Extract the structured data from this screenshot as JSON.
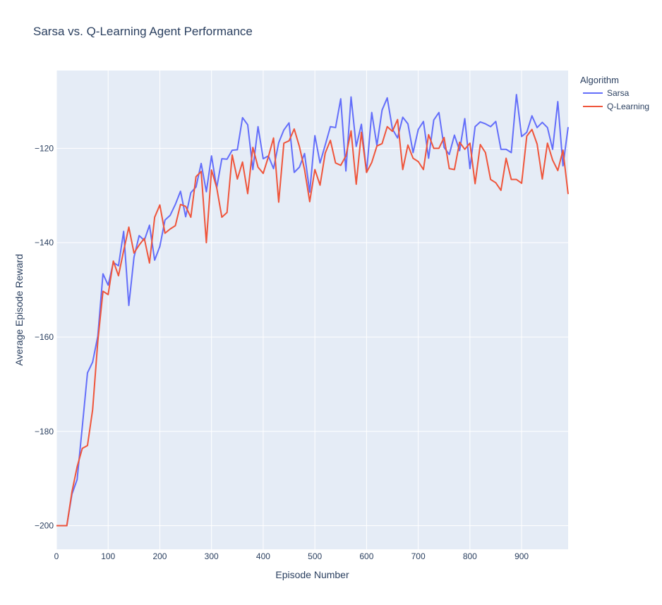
{
  "chart_data": {
    "type": "line",
    "title": "Sarsa vs. Q-Learning Agent Performance",
    "xlabel": "Episode Number",
    "ylabel": "Average Episode Reward",
    "xlim": [
      0,
      990
    ],
    "ylim": [
      -205,
      -103.5
    ],
    "xticks": [
      0,
      100,
      200,
      300,
      400,
      500,
      600,
      700,
      800,
      900
    ],
    "yticks": [
      -200,
      -180,
      -160,
      -140,
      -120
    ],
    "legend": {
      "title": "Algorithm",
      "position": "top-right-outside"
    },
    "grid": true,
    "x": [
      0,
      10,
      20,
      30,
      40,
      50,
      60,
      70,
      80,
      90,
      100,
      110,
      120,
      130,
      140,
      150,
      160,
      170,
      180,
      190,
      200,
      210,
      220,
      230,
      240,
      250,
      260,
      270,
      280,
      290,
      300,
      310,
      320,
      330,
      340,
      350,
      360,
      370,
      380,
      390,
      400,
      410,
      420,
      430,
      440,
      450,
      460,
      470,
      480,
      490,
      500,
      510,
      520,
      530,
      540,
      550,
      560,
      570,
      580,
      590,
      600,
      610,
      620,
      630,
      640,
      650,
      660,
      670,
      680,
      690,
      700,
      710,
      720,
      730,
      740,
      750,
      760,
      770,
      780,
      790,
      800,
      810,
      820,
      830,
      840,
      850,
      860,
      870,
      880,
      890,
      900,
      910,
      920,
      930,
      940,
      950,
      960,
      970,
      980,
      990
    ],
    "series": [
      {
        "name": "Sarsa",
        "color": "#636efa",
        "values": [
          -200,
          -200,
          -200,
          -193.3,
          -190.2,
          -179,
          -167.6,
          -165.3,
          -159.8,
          -146.6,
          -149,
          -144.2,
          -144.9,
          -137.6,
          -153.3,
          -143.1,
          -138.5,
          -139.5,
          -136.3,
          -143.7,
          -140.8,
          -135.2,
          -134.2,
          -131.9,
          -129.1,
          -134.5,
          -129.4,
          -128.2,
          -123.2,
          -129.2,
          -121.6,
          -128.4,
          -122.2,
          -122.3,
          -120.4,
          -120.3,
          -113.5,
          -115,
          -124.5,
          -115.4,
          -122.2,
          -121.6,
          -124.3,
          -118.8,
          -116.1,
          -114.6,
          -125.1,
          -124,
          -121.1,
          -129.3,
          -117.3,
          -123.1,
          -119.3,
          -115.4,
          -115.6,
          -109.5,
          -124.8,
          -109.1,
          -119.6,
          -114.9,
          -125.1,
          -112.4,
          -119.4,
          -111.9,
          -109.3,
          -115.9,
          -117.8,
          -113.4,
          -114.8,
          -120.9,
          -116,
          -114.3,
          -122.1,
          -114,
          -112.4,
          -119.8,
          -121.3,
          -117.2,
          -120.5,
          -113.7,
          -124.3,
          -115.4,
          -114.4,
          -114.8,
          -115.4,
          -114.3,
          -120.2,
          -120.2,
          -120.9,
          -108.6,
          -117.5,
          -116.6,
          -113.1,
          -115.6,
          -114.5,
          -115.6,
          -120.2,
          -110.1,
          -123.7,
          -115.5
        ]
      },
      {
        "name": "Q-Learning",
        "color": "#ef553b",
        "values": [
          -200,
          -200,
          -200,
          -192.8,
          -187.5,
          -183.6,
          -183,
          -175.4,
          -160.9,
          -150.3,
          -151,
          -143.9,
          -147,
          -141.7,
          -136.7,
          -142.2,
          -140.5,
          -139.1,
          -144.3,
          -134.6,
          -132,
          -138,
          -137.1,
          -136.4,
          -131.9,
          -132.3,
          -134.6,
          -126,
          -124.9,
          -140,
          -124.6,
          -128.3,
          -134.6,
          -133.6,
          -121.4,
          -126.5,
          -122.9,
          -129.6,
          -119.8,
          -124,
          -125.3,
          -121.8,
          -117.8,
          -131.4,
          -118.9,
          -118.4,
          -115.9,
          -119.6,
          -124.5,
          -131.3,
          -124.5,
          -127.8,
          -121,
          -118.3,
          -123.1,
          -123.6,
          -121.6,
          -116.3,
          -127.6,
          -116.6,
          -125.1,
          -123,
          -119.5,
          -119,
          -115.4,
          -116.4,
          -113.9,
          -124.5,
          -119.3,
          -122.1,
          -122.8,
          -124.5,
          -117.1,
          -120,
          -120,
          -117.7,
          -124.3,
          -124.5,
          -118.7,
          -120.2,
          -118.9,
          -127.5,
          -119.2,
          -120.9,
          -126.6,
          -127.3,
          -128.9,
          -122.1,
          -126.6,
          -126.6,
          -127.4,
          -117.4,
          -116,
          -119.1,
          -126.5,
          -118.9,
          -122.5,
          -124.7,
          -120.4,
          -129.7
        ]
      }
    ]
  }
}
